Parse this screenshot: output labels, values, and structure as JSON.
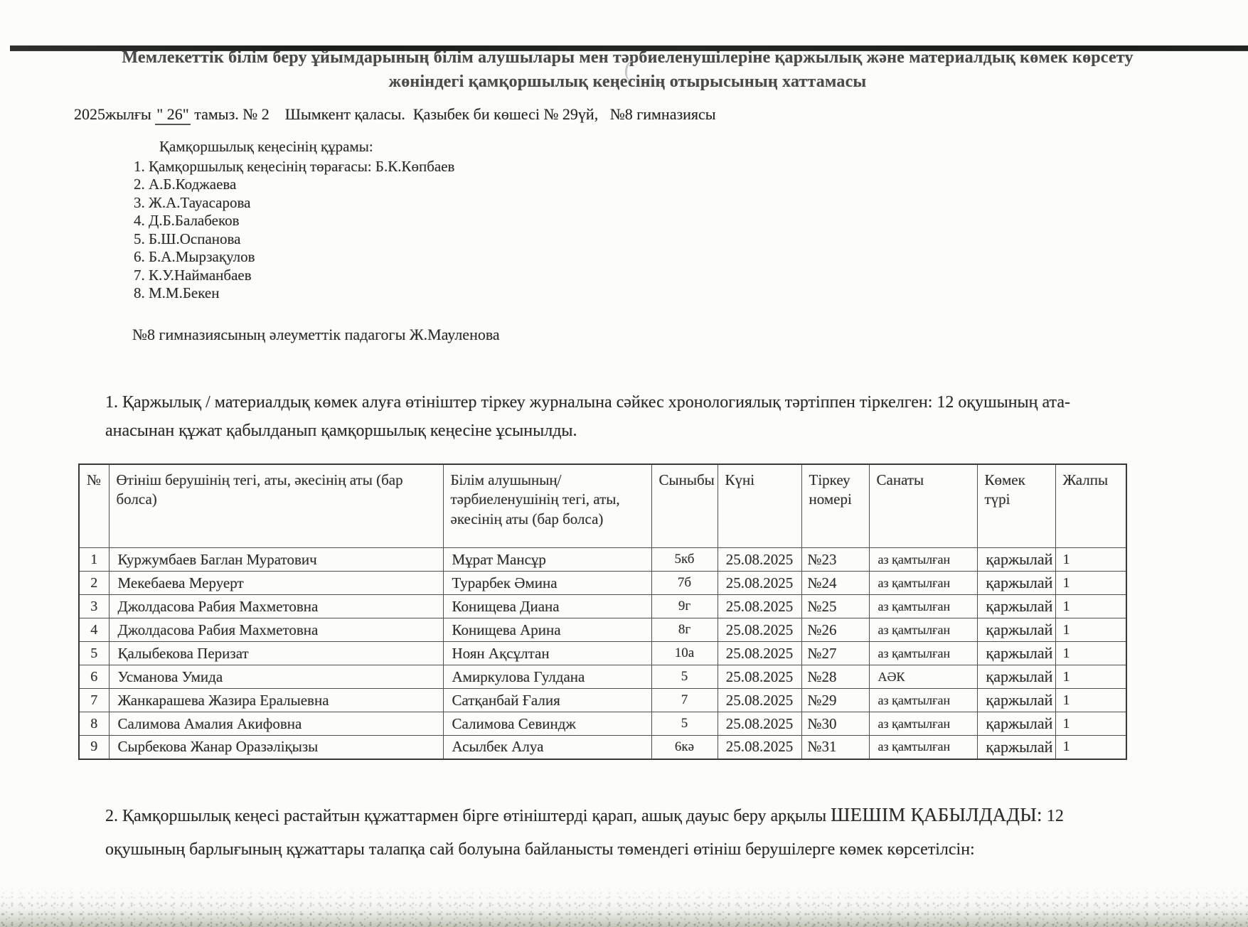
{
  "document": {
    "title": {
      "line1": "Мемлекеттік білім беру ұйымдарының білім алушылары мен тәрбиеленушілеріне қаржылық және материалдық көмек көрсету",
      "line2": "жөніндегі қамқоршылық кеңесінің отырысының хаттамасы"
    },
    "date_line": {
      "prefix": "2025жылғы ",
      "day": "\" 26\"",
      "rest": " тамыз. № 2    Шымкент қаласы.  Қазыбек би көшесі № 29үй,   №8 гимназиясы"
    },
    "council": {
      "heading": "Қамқоршылық кеңесінің құрамы:",
      "members": [
        "1. Қамқоршылық кеңесінің төрағасы: Б.К.Көпбаев",
        "2. А.Б.Коджаева",
        "3. Ж.А.Тауасарова",
        "4. Д.Б.Балабеков",
        "5. Б.Ш.Оспанова",
        "6. Б.А.Мырзақулов",
        "7. К.У.Найманбаев",
        "8. М.М.Бекен"
      ]
    },
    "pedagog_line": "№8 гимназиясының әлеуметтік падагогы Ж.Мауленова",
    "paragraph1": {
      "line1": "1. Қаржылық / материалдық көмек алуға өтініштер тіркеу журналына сәйкес хронологиялық тәртіппен тіркелген: 12 оқушының ата-",
      "line2": "анасынан құжат қабылданып қамқоршылық кеңесіне ұсынылды."
    },
    "paragraph2": {
      "line1_before": "2. Қамқоршылық кеңесі растайтын құжаттармен бірге өтініштерді қарап, ашық дауыс беру арқылы ",
      "line1_emphasis": "ШЕШІМ ҚАБЫЛДАДЫ:",
      "line1_after": " 12",
      "line2": "оқушының барлығының құжаттары талапқа сай болуына байланысты төмендегі өтініш берушілерге көмек көрсетілсін:"
    },
    "pen_mark": "("
  },
  "table": {
    "headers": [
      "№",
      "Өтініш берушінің тегі, аты, әкесінің аты (бар болса)",
      "Білім алушының/тәрбиеленушінің тегі, аты, әкесінің аты (бар болса)",
      "Сыныбы",
      "Күні",
      "Тіркеу номері",
      "Санаты",
      "Көмек түрі",
      "Жалпы"
    ],
    "rows": [
      [
        "1",
        "Куржумбаев Баглан Муратович",
        "Мұрат Мансұр",
        "5кб",
        "25.08.2025",
        "№23",
        "аз қамтылған",
        "қаржылай",
        "1"
      ],
      [
        "2",
        "Мекебаева Меруерт",
        "Турарбек Әмина",
        "7б",
        "25.08.2025",
        "№24",
        "аз қамтылған",
        "қаржылай",
        "1"
      ],
      [
        "3",
        "Джолдасова Рабия Махметовна",
        "Конищева Диана",
        "9г",
        "25.08.2025",
        "№25",
        "аз қамтылған",
        "қаржылай",
        "1"
      ],
      [
        "4",
        "Джолдасова Рабия Махметовна",
        "Конищева Арина",
        "8г",
        "25.08.2025",
        "№26",
        "аз қамтылған",
        "қаржылай",
        "1"
      ],
      [
        "5",
        "Қалыбекова Перизат",
        "Ноян Ақсұлтан",
        "10а",
        "25.08.2025",
        "№27",
        "аз қамтылған",
        "қаржылай",
        "1"
      ],
      [
        "6",
        "Усманова Умида",
        "Амиркулова Гулдана",
        "5",
        "25.08.2025",
        "№28",
        "АӘК",
        "қаржылай",
        "1"
      ],
      [
        "7",
        "Жанкарашева Жазира Ералыевна",
        "Сатқанбай Ғалия",
        "7",
        "25.08.2025",
        "№29",
        "аз қамтылған",
        "қаржылай",
        "1"
      ],
      [
        "8",
        "Салимова Амалия Акифовна",
        "Салимова Севиндж",
        "5",
        "25.08.2025",
        "№30",
        "аз қамтылған",
        "қаржылай",
        "1"
      ],
      [
        "9",
        "Сырбекова Жанар Оразәліқызы",
        "Асылбек Алуа",
        "6кә",
        "25.08.2025",
        "№31",
        "аз қамтылған",
        "қаржылай",
        "1"
      ]
    ]
  }
}
